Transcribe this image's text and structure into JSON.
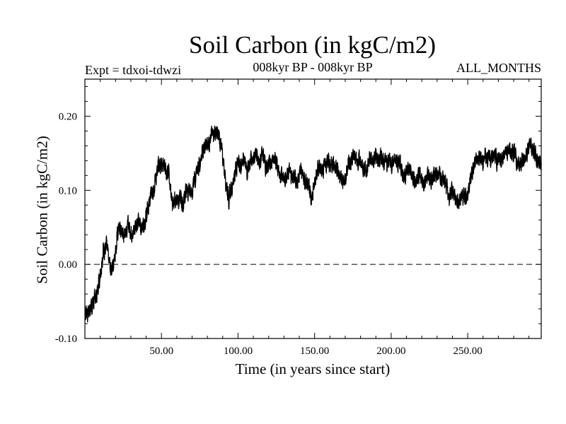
{
  "chart_data": {
    "type": "line",
    "title": "Soil Carbon (in kgC/m2)",
    "subtitle_left": "Expt = tdxoi-tdwzi",
    "subtitle_center": "008kyr BP - 008kyr BP",
    "subtitle_right": "ALL_MONTHS",
    "xlabel": "Time (in years since start)",
    "ylabel": "Soil Carbon (in kgC/m2)",
    "xlim": [
      0,
      298
    ],
    "ylim": [
      -0.1,
      0.25
    ],
    "xticks": [
      50,
      100,
      150,
      200,
      250
    ],
    "xtick_labels": [
      "50.00",
      "100.00",
      "150.00",
      "200.00",
      "250.00"
    ],
    "yticks": [
      -0.1,
      0.0,
      0.1,
      0.2
    ],
    "ytick_labels": [
      "-0.10",
      "0.00",
      "0.10",
      "0.20"
    ],
    "reference_line": {
      "y": 0.0,
      "style": "dashed"
    },
    "grid": false,
    "series_color": "#000000",
    "series": [
      {
        "x": [
          0,
          2,
          4,
          6,
          8,
          10,
          12,
          14,
          16,
          18,
          20,
          22,
          25,
          28,
          30,
          32,
          34,
          37,
          40,
          42,
          44,
          46,
          48,
          50,
          52,
          53,
          55,
          57,
          60,
          62,
          64,
          66,
          68,
          70,
          72,
          74,
          76,
          78,
          80,
          82,
          84,
          86,
          88,
          90,
          92,
          94,
          96,
          98,
          100,
          102,
          104,
          106,
          108,
          110,
          112,
          114,
          116,
          118,
          120,
          122,
          124,
          126,
          128,
          130,
          132,
          134,
          136,
          138,
          140,
          142,
          144,
          146,
          148,
          150,
          152,
          154,
          156,
          158,
          160,
          162,
          164,
          166,
          168,
          170,
          172,
          174,
          176,
          178,
          180,
          182,
          184,
          186,
          188,
          190,
          192,
          194,
          196,
          198,
          200,
          202,
          204,
          206,
          208,
          210,
          212,
          214,
          216,
          218,
          220,
          222,
          224,
          226,
          228,
          230,
          232,
          234,
          236,
          238,
          240,
          242,
          244,
          246,
          248,
          250,
          252,
          254,
          256,
          258,
          260,
          262,
          264,
          266,
          268,
          270,
          272,
          274,
          276,
          278,
          280,
          282,
          284,
          286,
          288,
          290,
          292,
          294,
          296,
          298
        ],
        "y": [
          -0.062,
          -0.065,
          -0.055,
          -0.05,
          -0.04,
          -0.01,
          0.02,
          0.025,
          0.0,
          -0.005,
          0.02,
          0.05,
          0.04,
          0.055,
          0.045,
          0.045,
          0.06,
          0.05,
          0.065,
          0.08,
          0.1,
          0.115,
          0.13,
          0.135,
          0.14,
          0.125,
          0.12,
          0.08,
          0.09,
          0.09,
          0.08,
          0.1,
          0.095,
          0.1,
          0.115,
          0.13,
          0.145,
          0.155,
          0.165,
          0.17,
          0.18,
          0.175,
          0.17,
          0.145,
          0.115,
          0.09,
          0.105,
          0.125,
          0.14,
          0.135,
          0.145,
          0.125,
          0.14,
          0.145,
          0.15,
          0.14,
          0.15,
          0.13,
          0.135,
          0.14,
          0.145,
          0.125,
          0.12,
          0.115,
          0.12,
          0.125,
          0.12,
          0.115,
          0.12,
          0.125,
          0.115,
          0.11,
          0.09,
          0.11,
          0.13,
          0.125,
          0.13,
          0.14,
          0.135,
          0.135,
          0.13,
          0.12,
          0.11,
          0.115,
          0.135,
          0.14,
          0.145,
          0.14,
          0.14,
          0.125,
          0.13,
          0.14,
          0.14,
          0.145,
          0.14,
          0.145,
          0.14,
          0.14,
          0.14,
          0.14,
          0.135,
          0.14,
          0.12,
          0.125,
          0.13,
          0.115,
          0.11,
          0.115,
          0.115,
          0.11,
          0.12,
          0.115,
          0.12,
          0.125,
          0.12,
          0.115,
          0.11,
          0.09,
          0.095,
          0.09,
          0.085,
          0.09,
          0.09,
          0.095,
          0.12,
          0.135,
          0.145,
          0.14,
          0.14,
          0.145,
          0.14,
          0.145,
          0.145,
          0.14,
          0.145,
          0.15,
          0.155,
          0.15,
          0.15,
          0.14,
          0.135,
          0.14,
          0.145,
          0.16,
          0.155,
          0.15,
          0.14,
          0.13
        ]
      }
    ]
  }
}
